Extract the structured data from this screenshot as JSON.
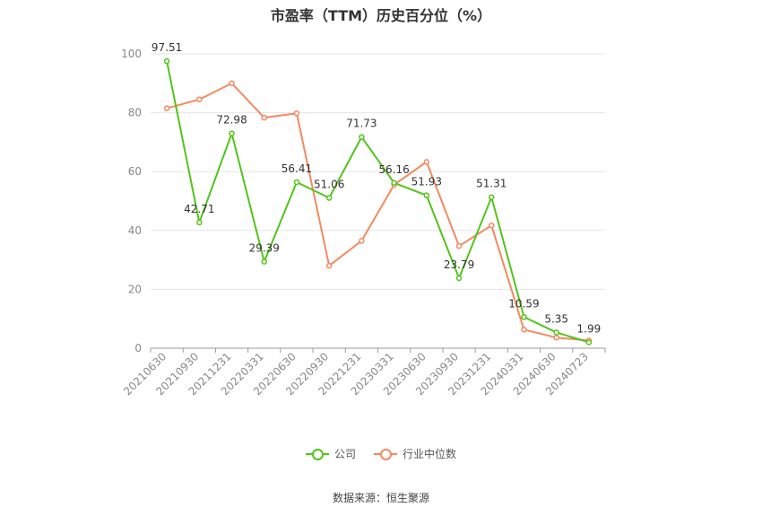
{
  "chart_data": {
    "type": "line",
    "title": "市盈率（TTM）历史百分位（%）",
    "x": [
      "20210630",
      "20210930",
      "20211231",
      "20220331",
      "20220630",
      "20220930",
      "20221231",
      "20230331",
      "20230630",
      "20230930",
      "20231231",
      "20240331",
      "20240630",
      "20240723"
    ],
    "series": [
      {
        "name": "公司",
        "color": "#52c41a",
        "values": [
          97.51,
          42.71,
          72.98,
          29.39,
          56.41,
          51.06,
          71.73,
          56.16,
          51.93,
          23.79,
          51.31,
          10.59,
          5.35,
          1.99
        ],
        "labels": [
          "97.51",
          "42.71",
          "72.98",
          "29.39",
          "56.41",
          "51.06",
          "71.73",
          "56.16",
          "51.93",
          "23.79",
          "51.31",
          "10.59",
          "5.35",
          "1.99"
        ]
      },
      {
        "name": "行业中位数",
        "color": "#f4895f",
        "values": [
          81.5,
          84.5,
          90.0,
          78.3,
          79.8,
          28.0,
          36.5,
          55.5,
          63.3,
          34.7,
          41.7,
          6.3,
          3.6,
          2.6
        ]
      }
    ],
    "ylim": [
      0,
      100
    ],
    "yticks": [
      "0",
      "20",
      "40",
      "60",
      "80",
      "100"
    ],
    "grid": true,
    "legend_position": "bottom"
  },
  "source": "数据来源：恒生聚源"
}
